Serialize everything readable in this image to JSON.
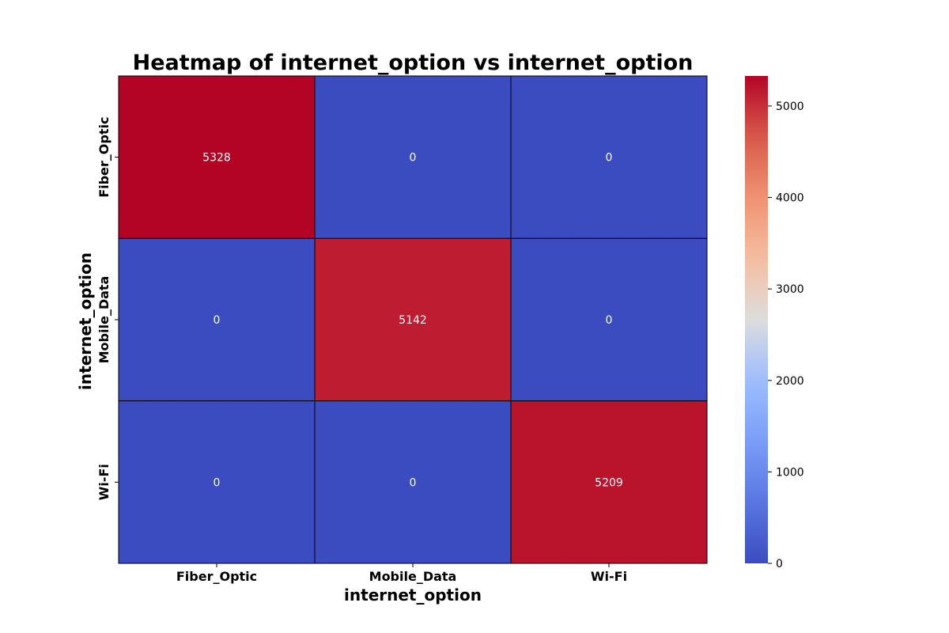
{
  "chart_data": {
    "type": "heatmap",
    "title": "Heatmap of internet_option vs internet_option",
    "xlabel": "internet_option",
    "ylabel": "internet_option",
    "x_categories": [
      "Fiber_Optic",
      "Mobile_Data",
      "Wi-Fi"
    ],
    "y_categories": [
      "Fiber_Optic",
      "Mobile_Data",
      "Wi-Fi"
    ],
    "values": [
      [
        5328,
        0,
        0
      ],
      [
        0,
        5142,
        0
      ],
      [
        0,
        0,
        5209
      ]
    ],
    "colormap": "coolwarm",
    "colorbar": {
      "min": 0,
      "max": 5328,
      "ticks": [
        0,
        1000,
        2000,
        3000,
        4000,
        5000
      ]
    },
    "annotations": true,
    "cell_border_color": "#000000"
  }
}
